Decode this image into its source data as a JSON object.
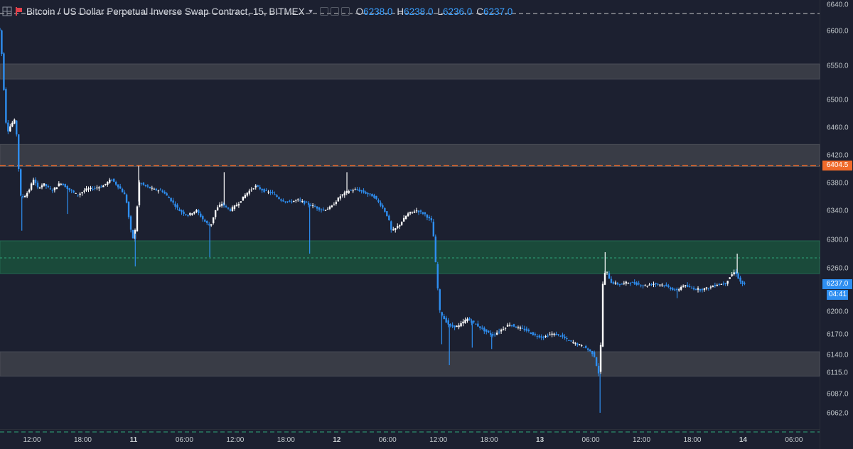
{
  "header": {
    "symbol_title": "Bitcoin / US Dollar Perpetual Inverse Swap Contract, 15, BITMEX",
    "ohlc": [
      {
        "key": "O",
        "value": "6238.0"
      },
      {
        "key": "H",
        "value": "6238.0"
      },
      {
        "key": "L",
        "value": "6236.0"
      },
      {
        "key": "C",
        "value": "6237.0"
      }
    ],
    "icons": [
      "crosshair-icon",
      "flag-icon",
      "dropdown-caret-icon",
      "settings-icon",
      "hide-icon",
      "close-icon"
    ]
  },
  "colors": {
    "background": "#1c2030",
    "candle_up": "#ffffff",
    "candle_down": "#2e8ef0",
    "grey_zone": "#393c46",
    "green_zone": "#1a4a3a",
    "resistance_line": "#f06a2a",
    "support_line": "#2ea77a",
    "top_line": "#c8c8c8",
    "price_tag": "#2e8ef0"
  },
  "chart_data": {
    "type": "candlestick",
    "y_axis": {
      "ticks": [
        6640.0,
        6600.0,
        6550.0,
        6500.0,
        6460.0,
        6420.0,
        6380.0,
        6340.0,
        6300.0,
        6260.0,
        6200.0,
        6170.0,
        6140.0,
        6115.0,
        6087.0,
        6062.0
      ],
      "tick_labels": [
        "6640.0",
        "6600.0",
        "6550.0",
        "6500.0",
        "6460.0",
        "6420.0",
        "6380.0",
        "6340.0",
        "6300.0",
        "6260.0",
        "6200.0",
        "6170.0",
        "6140.0",
        "6115.0",
        "6087.0",
        "6062.0"
      ]
    },
    "x_axis": {
      "tick_labels": [
        "12:00",
        "18:00",
        "11",
        "06:00",
        "12:00",
        "18:00",
        "12",
        "06:00",
        "12:00",
        "18:00",
        "13",
        "06:00",
        "12:00",
        "18:00",
        "14",
        "06:00"
      ],
      "tick_hours": [
        12,
        18,
        24,
        30,
        36,
        42,
        48,
        54,
        60,
        66,
        72,
        78,
        84,
        90,
        96,
        102
      ]
    },
    "zones": [
      {
        "type": "grey",
        "from": 6530,
        "to": 6552
      },
      {
        "type": "grey",
        "from": 6403,
        "to": 6435
      },
      {
        "type": "green",
        "from": 6252,
        "to": 6298
      },
      {
        "type": "grey",
        "from": 6110,
        "to": 6144
      }
    ],
    "lines": [
      {
        "type": "top",
        "value": 6626
      },
      {
        "type": "resistance",
        "value": 6404.5,
        "label": "6404.5"
      },
      {
        "type": "zone-mid",
        "value": 6274
      },
      {
        "type": "support",
        "value": 6037
      }
    ],
    "last_price": {
      "value": 6237.0,
      "label": "6237.0",
      "countdown": "04:41"
    },
    "path": [
      {
        "h": 7.8,
        "p": 6608
      },
      {
        "h": 8.3,
        "p": 6600
      },
      {
        "h": 8.6,
        "p": 6560
      },
      {
        "h": 9.0,
        "p": 6470
      },
      {
        "h": 9.3,
        "p": 6455
      },
      {
        "h": 9.7,
        "p": 6465
      },
      {
        "h": 10.1,
        "p": 6470
      },
      {
        "h": 10.4,
        "p": 6440
      },
      {
        "h": 10.7,
        "p": 6360
      },
      {
        "h": 11.2,
        "p": 6360
      },
      {
        "h": 11.7,
        "p": 6367
      },
      {
        "h": 12.3,
        "p": 6385
      },
      {
        "h": 12.8,
        "p": 6372
      },
      {
        "h": 13.5,
        "p": 6378
      },
      {
        "h": 14.5,
        "p": 6368
      },
      {
        "h": 15.5,
        "p": 6380
      },
      {
        "h": 16.5,
        "p": 6370
      },
      {
        "h": 17.5,
        "p": 6362
      },
      {
        "h": 18.5,
        "p": 6370
      },
      {
        "h": 19.5,
        "p": 6372
      },
      {
        "h": 20.5,
        "p": 6375
      },
      {
        "h": 21.5,
        "p": 6385
      },
      {
        "h": 22.5,
        "p": 6372
      },
      {
        "h": 23.2,
        "p": 6360
      },
      {
        "h": 23.7,
        "p": 6318
      },
      {
        "h": 24.0,
        "p": 6300
      },
      {
        "h": 24.3,
        "p": 6312
      },
      {
        "h": 24.8,
        "p": 6380
      },
      {
        "h": 25.5,
        "p": 6375
      },
      {
        "h": 26.5,
        "p": 6370
      },
      {
        "h": 27.5,
        "p": 6368
      },
      {
        "h": 28.5,
        "p": 6355
      },
      {
        "h": 29.5,
        "p": 6340
      },
      {
        "h": 30.5,
        "p": 6333
      },
      {
        "h": 31.5,
        "p": 6340
      },
      {
        "h": 32.5,
        "p": 6325
      },
      {
        "h": 33.2,
        "p": 6318
      },
      {
        "h": 33.8,
        "p": 6340
      },
      {
        "h": 34.5,
        "p": 6350
      },
      {
        "h": 35.5,
        "p": 6340
      },
      {
        "h": 36.5,
        "p": 6350
      },
      {
        "h": 37.5,
        "p": 6365
      },
      {
        "h": 38.5,
        "p": 6375
      },
      {
        "h": 39.5,
        "p": 6368
      },
      {
        "h": 40.5,
        "p": 6365
      },
      {
        "h": 41.5,
        "p": 6355
      },
      {
        "h": 42.5,
        "p": 6352
      },
      {
        "h": 43.5,
        "p": 6355
      },
      {
        "h": 44.5,
        "p": 6350
      },
      {
        "h": 45.5,
        "p": 6345
      },
      {
        "h": 46.5,
        "p": 6340
      },
      {
        "h": 47.5,
        "p": 6345
      },
      {
        "h": 48.5,
        "p": 6360
      },
      {
        "h": 49.5,
        "p": 6368
      },
      {
        "h": 50.5,
        "p": 6370
      },
      {
        "h": 51.5,
        "p": 6365
      },
      {
        "h": 52.5,
        "p": 6360
      },
      {
        "h": 53.5,
        "p": 6345
      },
      {
        "h": 54.2,
        "p": 6330
      },
      {
        "h": 54.6,
        "p": 6310
      },
      {
        "h": 55.5,
        "p": 6320
      },
      {
        "h": 56.5,
        "p": 6335
      },
      {
        "h": 57.5,
        "p": 6340
      },
      {
        "h": 58.5,
        "p": 6335
      },
      {
        "h": 59.3,
        "p": 6325
      },
      {
        "h": 59.6,
        "p": 6300
      },
      {
        "h": 59.9,
        "p": 6250
      },
      {
        "h": 60.3,
        "p": 6200
      },
      {
        "h": 60.8,
        "p": 6190
      },
      {
        "h": 61.5,
        "p": 6180
      },
      {
        "h": 62.5,
        "p": 6180
      },
      {
        "h": 63.5,
        "p": 6190
      },
      {
        "h": 64.5,
        "p": 6183
      },
      {
        "h": 65.5,
        "p": 6175
      },
      {
        "h": 66.5,
        "p": 6168
      },
      {
        "h": 67.5,
        "p": 6175
      },
      {
        "h": 68.5,
        "p": 6183
      },
      {
        "h": 69.5,
        "p": 6178
      },
      {
        "h": 70.5,
        "p": 6175
      },
      {
        "h": 71.5,
        "p": 6168
      },
      {
        "h": 72.5,
        "p": 6165
      },
      {
        "h": 73.5,
        "p": 6170
      },
      {
        "h": 74.5,
        "p": 6168
      },
      {
        "h": 75.5,
        "p": 6160
      },
      {
        "h": 76.5,
        "p": 6155
      },
      {
        "h": 77.5,
        "p": 6150
      },
      {
        "h": 78.5,
        "p": 6140
      },
      {
        "h": 79.0,
        "p": 6115
      },
      {
        "h": 79.2,
        "p": 6112
      },
      {
        "h": 79.5,
        "p": 6235
      },
      {
        "h": 79.9,
        "p": 6258
      },
      {
        "h": 80.5,
        "p": 6240
      },
      {
        "h": 81.5,
        "p": 6237
      },
      {
        "h": 82.5,
        "p": 6240
      },
      {
        "h": 83.5,
        "p": 6238
      },
      {
        "h": 84.5,
        "p": 6235
      },
      {
        "h": 85.5,
        "p": 6238
      },
      {
        "h": 86.5,
        "p": 6237
      },
      {
        "h": 87.5,
        "p": 6232
      },
      {
        "h": 88.3,
        "p": 6228
      },
      {
        "h": 89.0,
        "p": 6236
      },
      {
        "h": 90.0,
        "p": 6232
      },
      {
        "h": 91.0,
        "p": 6230
      },
      {
        "h": 92.0,
        "p": 6232
      },
      {
        "h": 93.0,
        "p": 6237
      },
      {
        "h": 94.0,
        "p": 6238
      },
      {
        "h": 94.7,
        "p": 6250
      },
      {
        "h": 95.2,
        "p": 6255
      },
      {
        "h": 95.7,
        "p": 6242
      },
      {
        "h": 96.1,
        "p": 6237
      }
    ],
    "wicks": [
      {
        "h": 10.8,
        "low": 6312
      },
      {
        "h": 16.2,
        "low": 6335
      },
      {
        "h": 24.2,
        "low": 6262
      },
      {
        "h": 24.6,
        "high": 6404
      },
      {
        "h": 33.0,
        "low": 6275
      },
      {
        "h": 34.7,
        "high": 6395
      },
      {
        "h": 44.8,
        "low": 6280
      },
      {
        "h": 49.2,
        "high": 6395
      },
      {
        "h": 60.4,
        "low": 6155
      },
      {
        "h": 61.3,
        "low": 6125
      },
      {
        "h": 64.0,
        "low": 6150
      },
      {
        "h": 66.3,
        "low": 6148
      },
      {
        "h": 79.1,
        "low": 6062
      },
      {
        "h": 79.7,
        "high": 6282
      },
      {
        "h": 88.2,
        "low": 6218
      },
      {
        "h": 95.3,
        "high": 6280
      }
    ]
  }
}
